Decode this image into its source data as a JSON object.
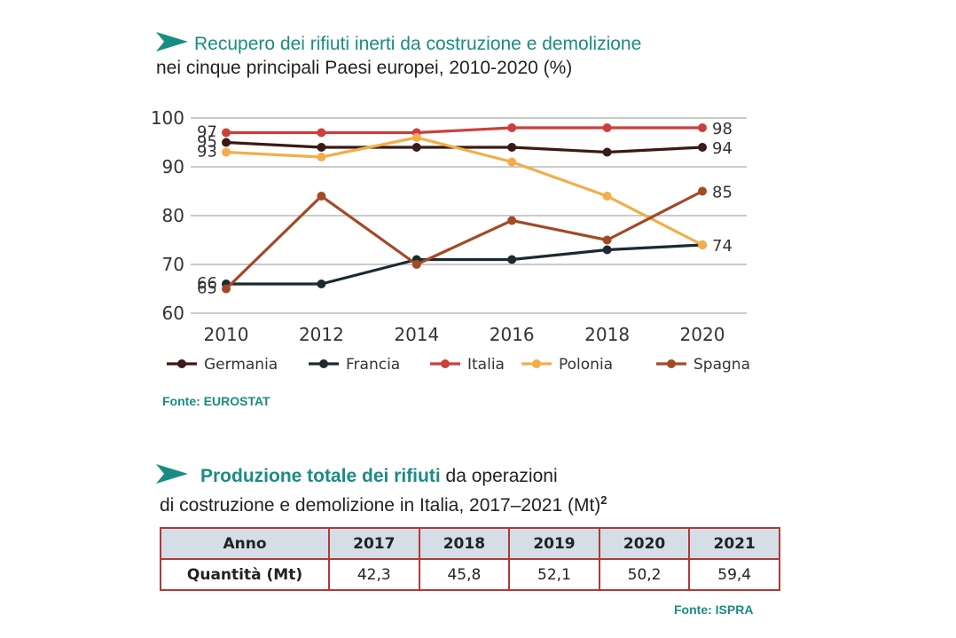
{
  "chart": {
    "title_teal": "Recupero dei rifiuti inerti da costruzione e demolizione",
    "title_dark": "nei cinque principali Paesi europei, 2010-2020 (%)",
    "source": "Fonte: EUROSTAT"
  },
  "chart_data": {
    "type": "line",
    "x": [
      2010,
      2012,
      2014,
      2016,
      2018,
      2020
    ],
    "xticks": [
      "2010",
      "2012",
      "2014",
      "2016",
      "2018",
      "2020"
    ],
    "yticks": [
      "60",
      "70",
      "80",
      "90",
      "100"
    ],
    "ylim": [
      60,
      100
    ],
    "grid": true,
    "legend_position": "bottom",
    "series": [
      {
        "name": "Germania",
        "color": "#3a1a14",
        "values": [
          95,
          94,
          94,
          94,
          93,
          94
        ]
      },
      {
        "name": "Francia",
        "color": "#1b2a30",
        "values": [
          66,
          66,
          71,
          71,
          73,
          74
        ]
      },
      {
        "name": "Italia",
        "color": "#cd3f3c",
        "values": [
          97,
          97,
          97,
          98,
          98,
          98
        ]
      },
      {
        "name": "Polonia",
        "color": "#f2ae4a",
        "values": [
          93,
          92,
          96,
          91,
          84,
          74
        ]
      },
      {
        "name": "Spagna",
        "color": "#a24a26",
        "values": [
          65,
          84,
          70,
          79,
          75,
          85
        ]
      }
    ],
    "annotations_left": [
      {
        "text": "97",
        "value": 97
      },
      {
        "text": "95",
        "value": 95
      },
      {
        "text": "93",
        "value": 93
      },
      {
        "text": "66",
        "value": 66
      },
      {
        "text": "65",
        "value": 65
      }
    ],
    "annotations_right": [
      {
        "text": "98",
        "value": 98
      },
      {
        "text": "94",
        "value": 94
      },
      {
        "text": "85",
        "value": 85
      },
      {
        "text": "74",
        "value": 74
      }
    ]
  },
  "table": {
    "title_teal": "Produzione totale dei rifiuti",
    "title_dark_1": " da operazioni",
    "title_dark_2": "di costruzione e demolizione in Italia, 2017–2021 (Mt)",
    "title_sup": "2",
    "header_label": "Anno",
    "years": [
      "2017",
      "2018",
      "2019",
      "2020",
      "2021"
    ],
    "row_label": "Quantità (Mt)",
    "values": [
      "42,3",
      "45,8",
      "52,1",
      "50,2",
      "59,4"
    ],
    "source": "Fonte: ISPRA",
    "arrow_icon": "arrow-right-icon"
  }
}
